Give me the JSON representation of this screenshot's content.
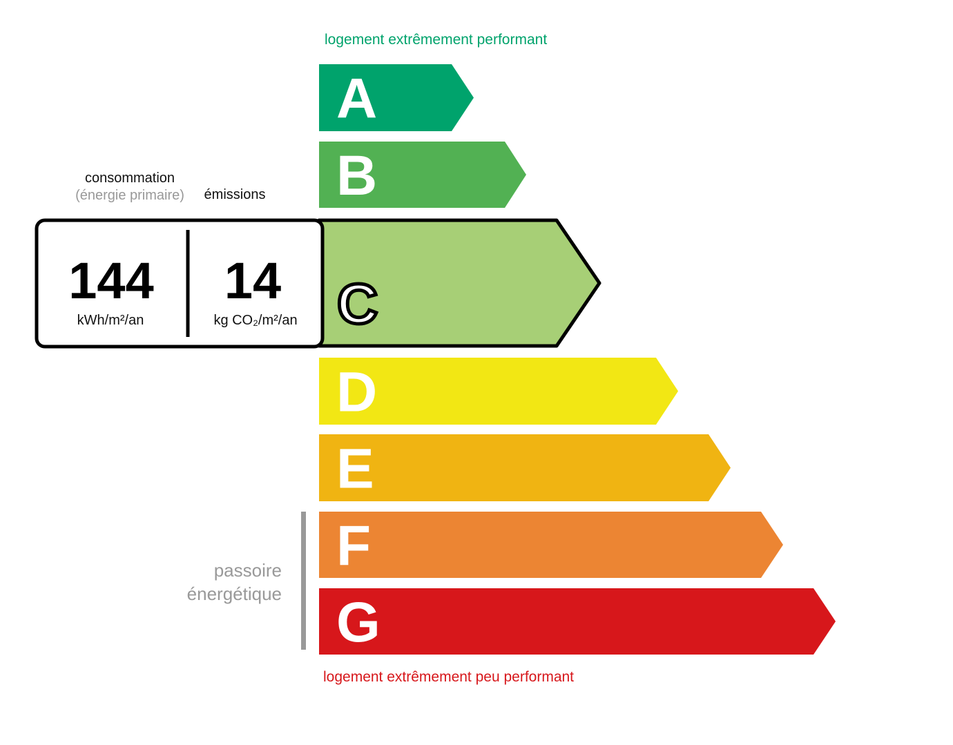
{
  "top_caption": "logement extrêmement performant",
  "bottom_caption": "logement extrêmement peu performant",
  "passoire": {
    "line1": "passoire",
    "line2": "énergétique"
  },
  "headers": {
    "consumption": "consommation",
    "consumption_sub": "(énergie primaire)",
    "emissions": "émissions"
  },
  "result": {
    "consumption_value": "144",
    "consumption_unit": "kWh/m²/an",
    "emissions_value": "14",
    "emissions_unit": "kg CO₂/m²/an",
    "class": "C"
  },
  "classes": [
    {
      "letter": "A",
      "color": "#00a36c"
    },
    {
      "letter": "B",
      "color": "#52b153"
    },
    {
      "letter": "C",
      "color": "#a7cf76"
    },
    {
      "letter": "D",
      "color": "#f2e714"
    },
    {
      "letter": "E",
      "color": "#f0b412"
    },
    {
      "letter": "F",
      "color": "#ec8533"
    },
    {
      "letter": "G",
      "color": "#d7171b"
    }
  ],
  "colors": {
    "top_caption": "#00a36c",
    "bottom_caption": "#d7171b",
    "muted": "#999999"
  }
}
